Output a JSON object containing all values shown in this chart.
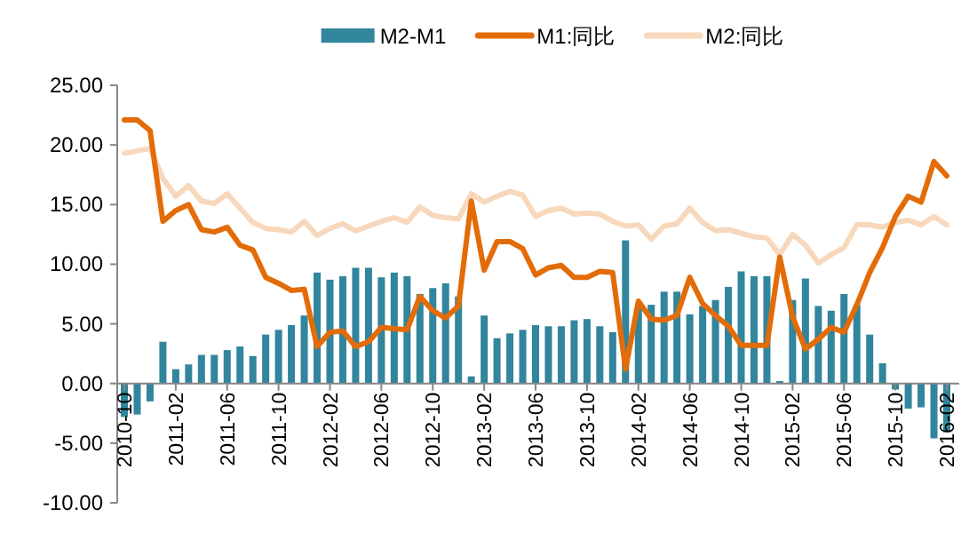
{
  "chart_data": {
    "type": "bar",
    "categories": [
      "2010-10",
      null,
      null,
      null,
      "2011-02",
      null,
      null,
      null,
      "2011-06",
      null,
      null,
      null,
      "2011-10",
      null,
      null,
      null,
      "2012-02",
      null,
      null,
      null,
      "2012-06",
      null,
      null,
      null,
      "2012-10",
      null,
      null,
      null,
      "2013-02",
      null,
      null,
      null,
      "2013-06",
      null,
      null,
      null,
      "2013-10",
      null,
      null,
      null,
      "2014-02",
      null,
      null,
      null,
      "2014-06",
      null,
      null,
      null,
      "2014-10",
      null,
      null,
      null,
      "2015-02",
      null,
      null,
      null,
      "2015-06",
      null,
      null,
      null,
      "2015-10",
      null,
      null,
      null,
      "2016-02"
    ],
    "ylim": [
      -10,
      25
    ],
    "yticks": [
      {
        "value": -10,
        "label": "-10.00"
      },
      {
        "value": -5,
        "label": "-5.00"
      },
      {
        "value": 0,
        "label": "0.00"
      },
      {
        "value": 5,
        "label": "5.00"
      },
      {
        "value": 10,
        "label": "10.00"
      },
      {
        "value": 15,
        "label": "15.00"
      },
      {
        "value": 20,
        "label": "20.00"
      },
      {
        "value": 25,
        "label": "25.00"
      }
    ],
    "legend": "top",
    "grid": false,
    "series": [
      {
        "name": "M2-M1",
        "color": "#31859c",
        "values": [
          -2.8,
          -2.6,
          -1.5,
          3.5,
          1.2,
          1.6,
          2.4,
          2.4,
          2.8,
          3.1,
          2.3,
          4.1,
          4.5,
          4.9,
          5.7,
          9.3,
          8.7,
          9.0,
          9.7,
          9.7,
          8.9,
          9.3,
          9.0,
          7.5,
          8.0,
          8.4,
          7.3,
          0.6,
          5.7,
          3.8,
          4.2,
          4.5,
          4.9,
          4.8,
          4.8,
          5.3,
          5.4,
          4.8,
          4.3,
          12.0,
          6.4,
          6.6,
          7.7,
          7.7,
          5.8,
          6.5,
          7.0,
          8.1,
          9.4,
          9.0,
          9.0,
          0.2,
          7.0,
          8.8,
          6.5,
          6.1,
          7.5,
          6.6,
          4.1,
          1.7,
          -0.5,
          -2.1,
          -2.0,
          -4.6,
          -4.1
        ]
      },
      {
        "name": "M1:同比",
        "type": "line",
        "color": "#e36c09",
        "values": [
          22.1,
          22.1,
          21.2,
          13.6,
          14.5,
          15.0,
          12.9,
          12.7,
          13.1,
          11.6,
          11.2,
          8.9,
          8.4,
          7.8,
          7.9,
          3.1,
          4.3,
          4.4,
          3.1,
          3.5,
          4.7,
          4.6,
          4.5,
          7.3,
          6.1,
          5.5,
          6.5,
          15.3,
          9.5,
          11.9,
          11.9,
          11.3,
          9.1,
          9.7,
          9.9,
          8.9,
          8.9,
          9.4,
          9.3,
          1.2,
          6.9,
          5.4,
          5.3,
          5.7,
          8.9,
          6.7,
          5.7,
          4.8,
          3.2,
          3.2,
          3.2,
          10.6,
          5.6,
          2.9,
          3.7,
          4.7,
          4.3,
          6.6,
          9.3,
          11.4,
          14.0,
          15.7,
          15.2,
          18.6,
          17.4
        ]
      },
      {
        "name": "M2:同比",
        "type": "line",
        "color": "#f8d8bc",
        "values": [
          19.3,
          19.5,
          19.7,
          17.2,
          15.7,
          16.6,
          15.3,
          15.1,
          15.9,
          14.7,
          13.5,
          13.0,
          12.9,
          12.7,
          13.6,
          12.4,
          13.0,
          13.4,
          12.8,
          13.2,
          13.6,
          13.9,
          13.5,
          14.8,
          14.1,
          13.9,
          13.8,
          15.9,
          15.2,
          15.7,
          16.1,
          15.8,
          14.0,
          14.5,
          14.7,
          14.2,
          14.3,
          14.2,
          13.6,
          13.2,
          13.3,
          12.1,
          13.2,
          13.4,
          14.7,
          13.5,
          12.8,
          12.9,
          12.6,
          12.3,
          12.2,
          10.8,
          12.5,
          11.6,
          10.1,
          10.8,
          11.4,
          13.3,
          13.3,
          13.1,
          13.5,
          13.7,
          13.3,
          14.0,
          13.3
        ]
      }
    ]
  }
}
